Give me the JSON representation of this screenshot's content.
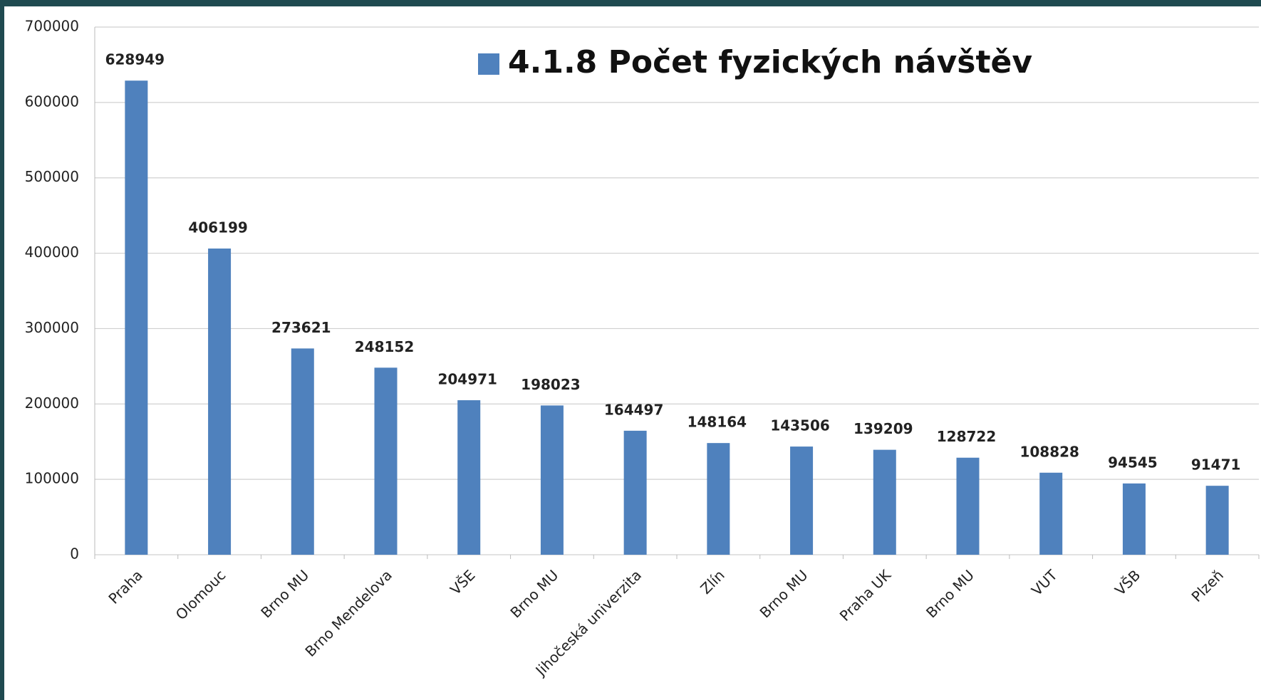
{
  "chart_data": {
    "type": "bar",
    "categories": [
      "Praha",
      "Olomouc",
      "Brno MU",
      "Brno Mendelova",
      "VŠE",
      "Brno MU",
      "Jihočeská univerzita",
      "Zlín",
      "Brno MU",
      "Praha UK",
      "Brno MU",
      "VUT",
      "VŠB",
      "Plzeň"
    ],
    "series": [
      {
        "name": "4.1.8 Počet fyzických návštěv",
        "color": "#4f81bd",
        "values": [
          628949,
          406199,
          273621,
          248152,
          204971,
          198023,
          164497,
          148164,
          143506,
          139209,
          128722,
          108828,
          94545,
          91471
        ]
      }
    ],
    "ylim": [
      0,
      700000
    ],
    "yticks": [
      0,
      100000,
      200000,
      300000,
      400000,
      500000,
      600000,
      700000
    ],
    "grid": true,
    "legend": "top"
  }
}
